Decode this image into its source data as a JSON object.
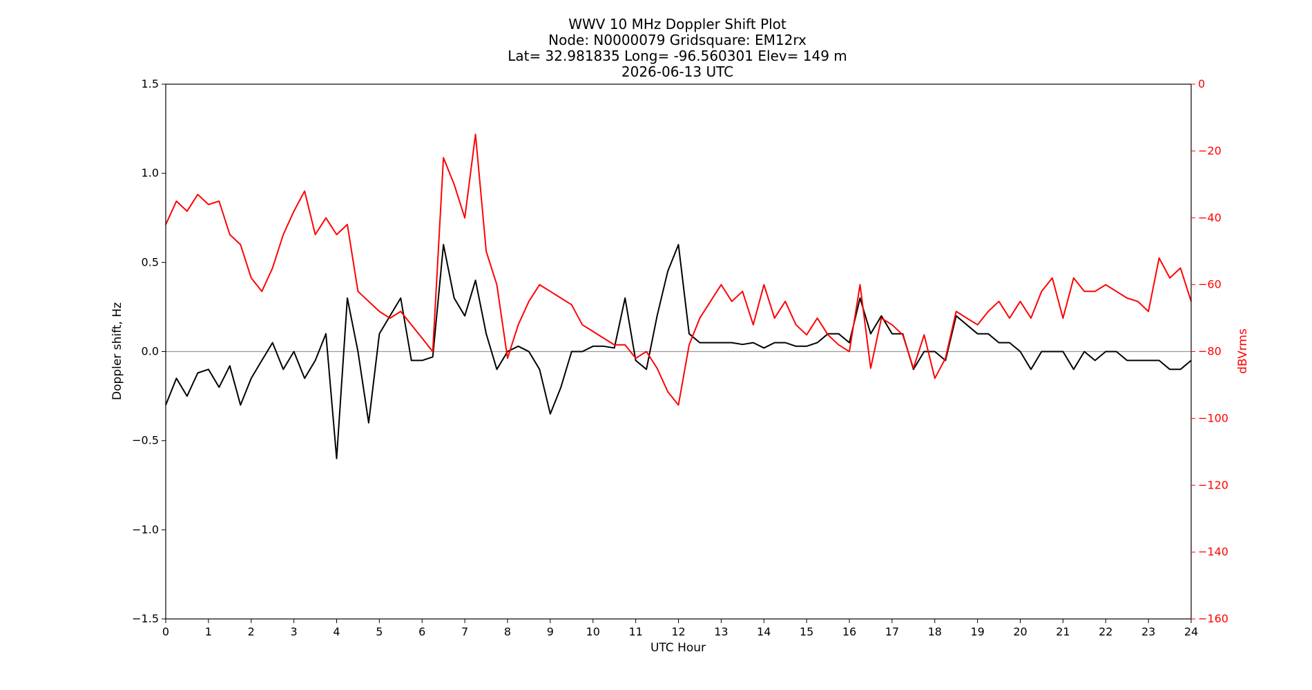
{
  "chart_data": {
    "type": "line",
    "title_lines": [
      "WWV 10 MHz Doppler Shift Plot",
      "Node:  N0000079     Gridsquare:  EM12rx",
      "Lat= 32.981835    Long= -96.560301    Elev= 149 m",
      "2026-06-13  UTC"
    ],
    "xlabel": "UTC Hour",
    "ylabel_left": "Doppler shift, Hz",
    "ylabel_right": "dBVrms",
    "xlim": [
      0,
      24
    ],
    "ylim_left": [
      -1.5,
      1.5
    ],
    "ylim_right": [
      -160,
      0
    ],
    "x_ticks": [
      0,
      1,
      2,
      3,
      4,
      5,
      6,
      7,
      8,
      9,
      10,
      11,
      12,
      13,
      14,
      15,
      16,
      17,
      18,
      19,
      20,
      21,
      22,
      23,
      24
    ],
    "y_ticks_left": [
      "−1.5",
      "−1.0",
      "−0.5",
      "0.0",
      "0.5",
      "1.0",
      "1.5"
    ],
    "y_ticks_left_values": [
      -1.5,
      -1.0,
      -0.5,
      0.0,
      0.5,
      1.0,
      1.5
    ],
    "y_ticks_right": [
      "−160",
      "−140",
      "−120",
      "−100",
      "−80",
      "−60",
      "−40",
      "−20",
      "0"
    ],
    "y_ticks_right_values": [
      -160,
      -140,
      -120,
      -100,
      -80,
      -60,
      -40,
      -20,
      0
    ],
    "reference_line_y": 0.0,
    "colors": {
      "doppler": "#000000",
      "power": "#ff0000",
      "reference": "#999999",
      "axis": "#000000",
      "right_axis_text": "#ff0000"
    },
    "series": [
      {
        "axis": "left",
        "color": "#000000",
        "x": [
          0,
          0.25,
          0.5,
          0.75,
          1,
          1.25,
          1.5,
          1.75,
          2,
          2.25,
          2.5,
          2.75,
          3,
          3.25,
          3.5,
          3.75,
          4,
          4.25,
          4.5,
          4.75,
          5,
          5.25,
          5.5,
          5.75,
          6,
          6.25,
          6.5,
          6.75,
          7,
          7.25,
          7.5,
          7.75,
          8,
          8.25,
          8.5,
          8.75,
          9,
          9.25,
          9.5,
          9.75,
          10,
          10.25,
          10.5,
          10.75,
          11,
          11.25,
          11.5,
          11.75,
          12,
          12.25,
          12.5,
          12.75,
          13,
          13.25,
          13.5,
          13.75,
          14,
          14.25,
          14.5,
          14.75,
          15,
          15.25,
          15.5,
          15.75,
          16,
          16.25,
          16.5,
          16.75,
          17,
          17.25,
          17.5,
          17.75,
          18,
          18.25,
          18.5,
          18.75,
          19,
          19.25,
          19.5,
          19.75,
          20,
          20.25,
          20.5,
          20.75,
          21,
          21.25,
          21.5,
          21.75,
          22,
          22.25,
          22.5,
          22.75,
          23,
          23.25,
          23.5,
          23.75,
          24
        ],
        "values": [
          -0.3,
          -0.15,
          -0.25,
          -0.12,
          -0.1,
          -0.2,
          -0.08,
          -0.3,
          -0.15,
          -0.05,
          0.05,
          -0.1,
          0.0,
          -0.15,
          -0.05,
          0.1,
          -0.6,
          0.3,
          0.0,
          -0.4,
          0.1,
          0.2,
          0.3,
          -0.05,
          -0.05,
          -0.03,
          0.6,
          0.3,
          0.2,
          0.4,
          0.1,
          -0.1,
          0.0,
          0.03,
          0.0,
          -0.1,
          -0.35,
          -0.2,
          0.0,
          0.0,
          0.03,
          0.03,
          0.02,
          0.3,
          -0.05,
          -0.1,
          0.2,
          0.45,
          0.6,
          0.1,
          0.05,
          0.05,
          0.05,
          0.05,
          0.04,
          0.05,
          0.02,
          0.05,
          0.05,
          0.03,
          0.03,
          0.05,
          0.1,
          0.1,
          0.05,
          0.3,
          0.1,
          0.2,
          0.1,
          0.1,
          -0.1,
          0.0,
          0.0,
          -0.05,
          0.2,
          0.15,
          0.1,
          0.1,
          0.05,
          0.05,
          0.0,
          -0.1,
          0.0,
          0.0,
          0.0,
          -0.1,
          0.0,
          -0.05,
          0.0,
          0.0,
          -0.05,
          -0.05,
          -0.05,
          -0.05,
          -0.1,
          -0.1,
          -0.05
        ]
      },
      {
        "axis": "right",
        "color": "#ff0000",
        "x": [
          0,
          0.25,
          0.5,
          0.75,
          1,
          1.25,
          1.5,
          1.75,
          2,
          2.25,
          2.5,
          2.75,
          3,
          3.25,
          3.5,
          3.75,
          4,
          4.25,
          4.5,
          4.75,
          5,
          5.25,
          5.5,
          5.75,
          6,
          6.25,
          6.5,
          6.75,
          7,
          7.25,
          7.5,
          7.75,
          8,
          8.25,
          8.5,
          8.75,
          9,
          9.25,
          9.5,
          9.75,
          10,
          10.25,
          10.5,
          10.75,
          11,
          11.25,
          11.5,
          11.75,
          12,
          12.25,
          12.5,
          12.75,
          13,
          13.25,
          13.5,
          13.75,
          14,
          14.25,
          14.5,
          14.75,
          15,
          15.25,
          15.5,
          15.75,
          16,
          16.25,
          16.5,
          16.75,
          17,
          17.25,
          17.5,
          17.75,
          18,
          18.25,
          18.5,
          18.75,
          19,
          19.25,
          19.5,
          19.75,
          20,
          20.25,
          20.5,
          20.75,
          21,
          21.25,
          21.5,
          21.75,
          22,
          22.25,
          22.5,
          22.75,
          23,
          23.25,
          23.5,
          23.75,
          24
        ],
        "values": [
          -42,
          -35,
          -38,
          -33,
          -36,
          -35,
          -45,
          -48,
          -58,
          -62,
          -55,
          -45,
          -38,
          -32,
          -45,
          -40,
          -45,
          -42,
          -62,
          -65,
          -68,
          -70,
          -68,
          -72,
          -76,
          -80,
          -22,
          -30,
          -40,
          -15,
          -50,
          -60,
          -82,
          -72,
          -65,
          -60,
          -62,
          -64,
          -66,
          -72,
          -74,
          -76,
          -78,
          -78,
          -82,
          -80,
          -85,
          -92,
          -96,
          -78,
          -70,
          -65,
          -60,
          -65,
          -62,
          -72,
          -60,
          -70,
          -65,
          -72,
          -75,
          -70,
          -75,
          -78,
          -80,
          -60,
          -85,
          -70,
          -72,
          -75,
          -85,
          -75,
          -88,
          -82,
          -68,
          -70,
          -72,
          -68,
          -65,
          -70,
          -65,
          -70,
          -62,
          -58,
          -70,
          -58,
          -62,
          -62,
          -60,
          -62,
          -64,
          -65,
          -68,
          -52,
          -58,
          -55,
          -65
        ]
      }
    ]
  }
}
